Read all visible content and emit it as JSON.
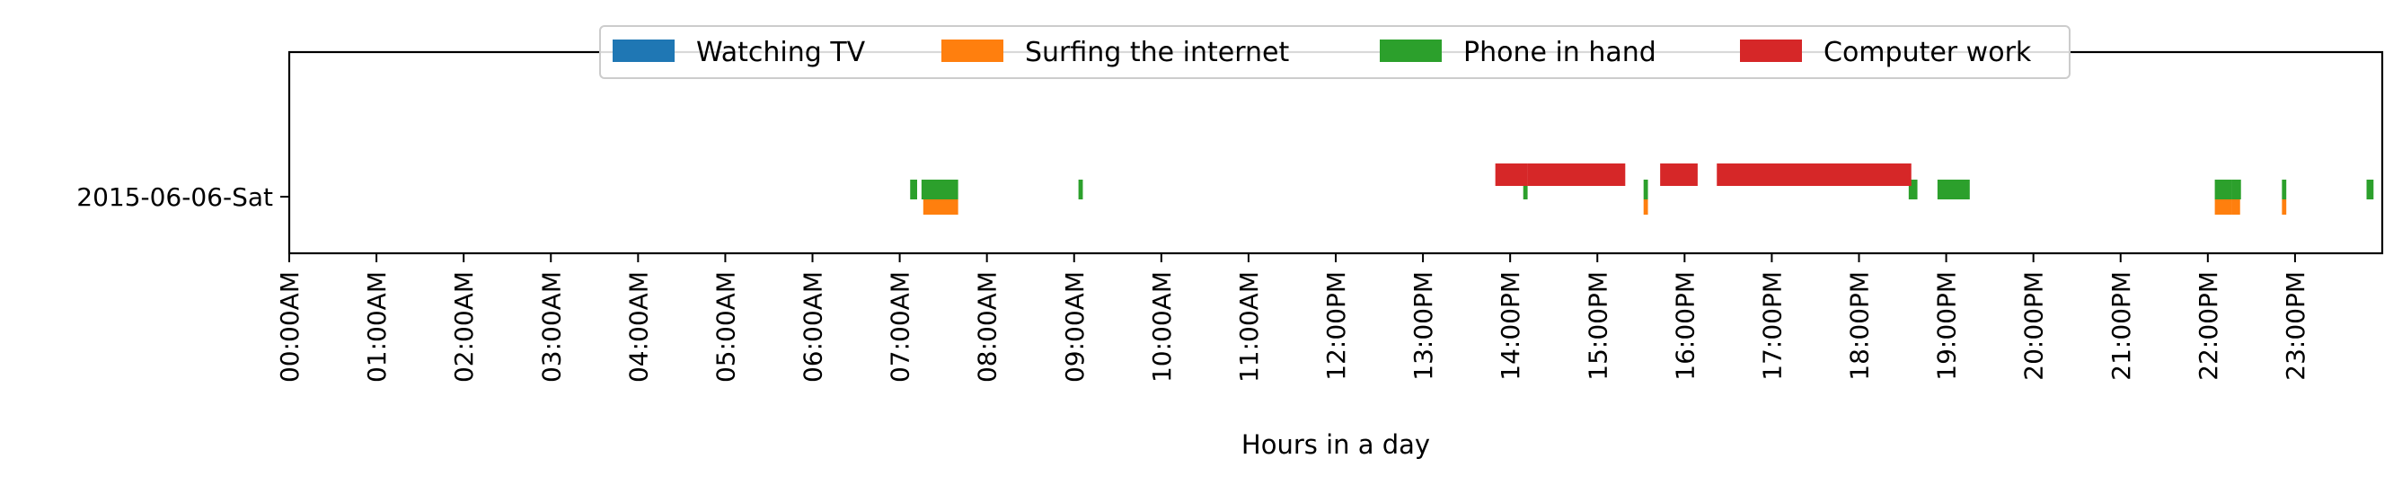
{
  "chart_data": {
    "type": "bar",
    "subtype": "horizontal-timeline",
    "title": "",
    "xlabel": "Hours in a day",
    "ylabel": "",
    "xlim": [
      0,
      24
    ],
    "x_unit": "hours",
    "x_ticks": [
      0,
      1,
      2,
      3,
      4,
      5,
      6,
      7,
      8,
      9,
      10,
      11,
      12,
      13,
      14,
      15,
      16,
      17,
      18,
      19,
      20,
      21,
      22,
      23
    ],
    "x_tick_labels": [
      "00:00AM",
      "01:00AM",
      "02:00AM",
      "03:00AM",
      "04:00AM",
      "05:00AM",
      "06:00AM",
      "07:00AM",
      "08:00AM",
      "09:00AM",
      "10:00AM",
      "11:00AM",
      "12:00PM",
      "13:00PM",
      "14:00PM",
      "15:00PM",
      "16:00PM",
      "17:00PM",
      "18:00PM",
      "19:00PM",
      "20:00PM",
      "21:00PM",
      "22:00PM",
      "23:00PM"
    ],
    "categories": [
      "2015-06-06-Sat"
    ],
    "grid": false,
    "legend_position": "top-center",
    "series": [
      {
        "name": "Watching TV",
        "color": "#1f77b4",
        "lane": "bottom",
        "intervals": []
      },
      {
        "name": "Surfing the internet",
        "color": "#ff7f0e",
        "lane": "bottom",
        "intervals": [
          [
            7.27,
            7.67
          ],
          [
            15.53,
            15.58
          ],
          [
            22.08,
            22.27
          ],
          [
            22.27,
            22.37
          ],
          [
            22.85,
            22.9
          ]
        ]
      },
      {
        "name": "Phone in hand",
        "color": "#2ca02c",
        "lane": "middle",
        "intervals": [
          [
            7.12,
            7.2
          ],
          [
            7.25,
            7.67
          ],
          [
            9.05,
            9.1
          ],
          [
            14.15,
            14.2
          ],
          [
            15.53,
            15.58
          ],
          [
            18.57,
            18.67
          ],
          [
            18.9,
            19.27
          ],
          [
            22.08,
            22.27
          ],
          [
            22.27,
            22.38
          ],
          [
            22.85,
            22.9
          ],
          [
            23.82,
            23.9
          ]
        ]
      },
      {
        "name": "Computer work",
        "color": "#d62728",
        "lane": "top",
        "intervals": [
          [
            13.83,
            14.2
          ],
          [
            14.2,
            15.32
          ],
          [
            15.72,
            16.15
          ],
          [
            16.37,
            18.6
          ]
        ]
      }
    ]
  }
}
